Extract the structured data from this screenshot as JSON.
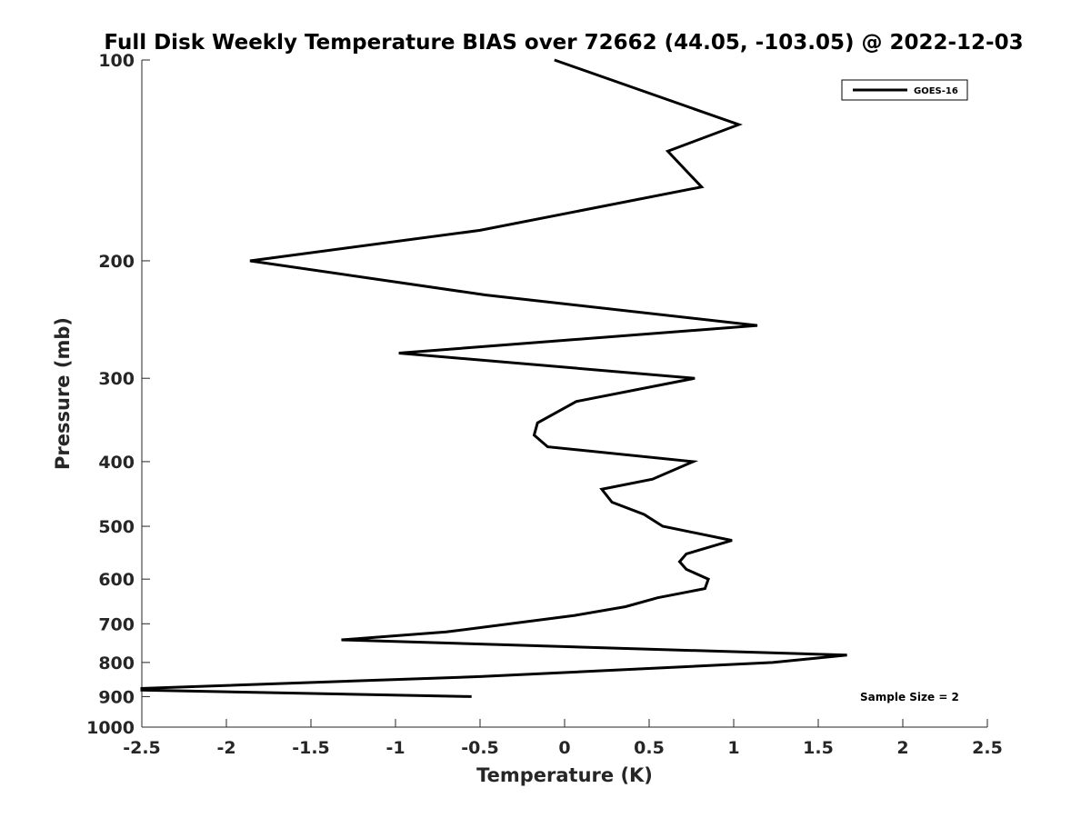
{
  "chart_data": {
    "type": "line",
    "title": "Full Disk Weekly Temperature BIAS over 72662 (44.05, -103.05) @ 2022-12-03",
    "xlabel": "Temperature (K)",
    "ylabel": "Pressure (mb)",
    "xlim": [
      -2.5,
      2.5
    ],
    "ylim": [
      1000,
      100
    ],
    "yscale": "log",
    "x_ticks": [
      -2.5,
      -2,
      -1.5,
      -1,
      -0.5,
      0,
      0.5,
      1,
      1.5,
      2,
      2.5
    ],
    "x_tick_labels": [
      "-2.5",
      "-2",
      "-1.5",
      "-1",
      "-0.5",
      "0",
      "0.5",
      "1",
      "1.5",
      "2",
      "2.5"
    ],
    "y_ticks": [
      100,
      200,
      300,
      400,
      500,
      600,
      700,
      800,
      900,
      1000
    ],
    "y_tick_labels": [
      "100",
      "200",
      "300",
      "400",
      "500",
      "600",
      "700",
      "800",
      "900",
      "1000"
    ],
    "legend": {
      "placement": "top-right",
      "entries": [
        "GOES-16"
      ]
    },
    "annotation": "Sample Size = 2",
    "grid": false,
    "series": [
      {
        "name": "GOES-16",
        "color": "#000000",
        "points": [
          [
            -0.06,
            100
          ],
          [
            1.03,
            125
          ],
          [
            0.61,
            137
          ],
          [
            0.81,
            155
          ],
          [
            -0.5,
            180
          ],
          [
            -1.86,
            200
          ],
          [
            -0.47,
            225
          ],
          [
            1.14,
            250
          ],
          [
            -0.98,
            275
          ],
          [
            0.77,
            300
          ],
          [
            0.07,
            325
          ],
          [
            -0.16,
            350
          ],
          [
            -0.18,
            365
          ],
          [
            -0.1,
            380
          ],
          [
            0.76,
            400
          ],
          [
            0.52,
            425
          ],
          [
            0.22,
            440
          ],
          [
            0.28,
            460
          ],
          [
            0.47,
            480
          ],
          [
            0.58,
            500
          ],
          [
            0.99,
            525
          ],
          [
            0.72,
            550
          ],
          [
            0.68,
            565
          ],
          [
            0.72,
            580
          ],
          [
            0.85,
            600
          ],
          [
            0.83,
            620
          ],
          [
            0.55,
            640
          ],
          [
            0.36,
            660
          ],
          [
            0.06,
            680
          ],
          [
            -0.7,
            720
          ],
          [
            -1.32,
            740
          ],
          [
            1.67,
            780
          ],
          [
            1.23,
            800
          ],
          [
            -0.5,
            840
          ],
          [
            -2.5,
            875
          ],
          [
            -2.5,
            880
          ],
          [
            -0.55,
            900
          ]
        ]
      }
    ]
  }
}
